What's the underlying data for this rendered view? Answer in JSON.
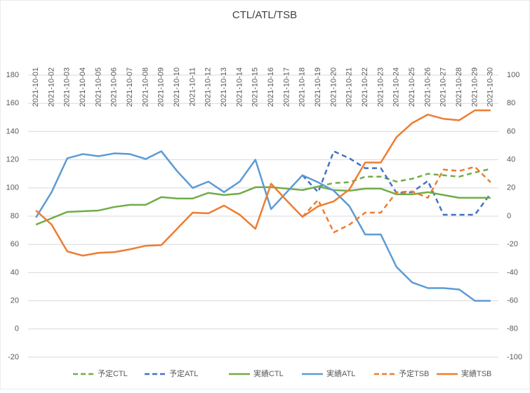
{
  "chart_data": {
    "type": "line",
    "title": "CTL/ATL/TSB",
    "categories": [
      "2021-10-01",
      "2021-10-02",
      "2021-10-03",
      "2021-10-04",
      "2021-10-05",
      "2021-10-06",
      "2021-10-07",
      "2021-10-08",
      "2021-10-09",
      "2021-10-10",
      "2021-10-11",
      "2021-10-12",
      "2021-10-13",
      "2021-10-14",
      "2021-10-15",
      "2021-10-16",
      "2021-10-17",
      "2021-10-18",
      "2021-10-19",
      "2021-10-20",
      "2021-10-21",
      "2021-10-22",
      "2021-10-23",
      "2021-10-24",
      "2021-10-25",
      "2021-10-26",
      "2021-10-27",
      "2021-10-28",
      "2021-10-29",
      "2021-10-30"
    ],
    "ylim": [
      -20,
      180
    ],
    "yticks": [
      -20,
      0,
      20,
      40,
      60,
      80,
      100,
      120,
      140,
      160,
      180
    ],
    "y2lim": [
      -100,
      100
    ],
    "y2ticks": [
      -100,
      -80,
      -60,
      -40,
      -20,
      0,
      20,
      40,
      60,
      80,
      100
    ],
    "grid": true,
    "legend": "bottom",
    "series": [
      {
        "name": "予定CTL",
        "color": "#70ad47",
        "dash": true,
        "values": [
          null,
          null,
          null,
          null,
          null,
          null,
          null,
          null,
          null,
          null,
          null,
          null,
          null,
          null,
          null,
          null,
          null,
          98.5,
          101,
          103.5,
          104,
          108,
          108,
          104.5,
          106.5,
          110,
          109,
          108,
          111,
          113.5
        ]
      },
      {
        "name": "予定ATL",
        "color": "#4472c4",
        "dash": true,
        "values": [
          null,
          null,
          null,
          null,
          null,
          null,
          null,
          null,
          null,
          null,
          null,
          null,
          null,
          null,
          null,
          null,
          null,
          109,
          97,
          126,
          121,
          114,
          114,
          96.5,
          97,
          105,
          81,
          81,
          81,
          96
        ]
      },
      {
        "name": "実績CTL",
        "color": "#70ad47",
        "dash": false,
        "values": [
          74,
          78.5,
          83,
          83.5,
          84,
          86.5,
          88,
          88,
          93.5,
          92.5,
          92.5,
          96.5,
          95,
          96,
          100.5,
          100.5,
          99.5,
          98.5,
          101,
          98.5,
          98,
          99.5,
          99.5,
          95.5,
          95.5,
          97,
          95,
          93,
          93,
          93
        ]
      },
      {
        "name": "実績ATL",
        "color": "#5b9bd5",
        "dash": false,
        "values": [
          79,
          97,
          121,
          124,
          122.5,
          124.5,
          124,
          120.5,
          126,
          112,
          100,
          104.5,
          97,
          104.5,
          120,
          85,
          97,
          109,
          104,
          98,
          87,
          67,
          67,
          44,
          33,
          29,
          29,
          28,
          20,
          20
        ]
      },
      {
        "name": "予定TSB",
        "color": "#ed7d31",
        "dash": true,
        "axis": "y2",
        "values": [
          null,
          null,
          null,
          null,
          null,
          null,
          null,
          null,
          null,
          null,
          null,
          null,
          null,
          null,
          null,
          null,
          null,
          -0.5,
          11.5,
          -11.5,
          -6,
          2.5,
          2.5,
          17,
          17.5,
          13,
          33,
          32,
          35,
          24
        ]
      },
      {
        "name": "実績TSB",
        "color": "#ed7d31",
        "dash": false,
        "axis": "y2",
        "values": [
          4,
          -6,
          -25,
          -28,
          -26,
          -25.5,
          -23.5,
          -21,
          -20.5,
          -9,
          2.5,
          2,
          7.5,
          1,
          -9,
          23,
          11,
          -0.5,
          7,
          10.5,
          19,
          38,
          38,
          56,
          66,
          72,
          69,
          68,
          75,
          75
        ]
      }
    ]
  }
}
